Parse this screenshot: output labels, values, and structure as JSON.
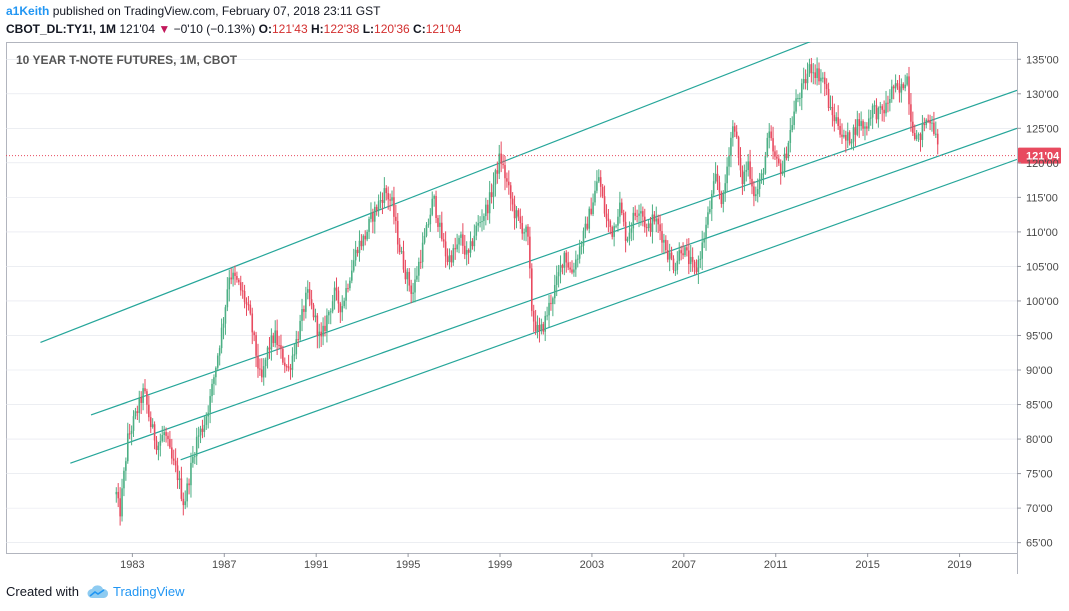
{
  "header": {
    "author": "a1Keith",
    "published_text": "published on TradingView.com, February 07, 2018 23:11 GST",
    "symbol": "CBOT_DL:TY1!, 1M",
    "last": "121'04",
    "change_arrow": "▼",
    "change": "−0'10 (−0.13%)",
    "open_label": "O:",
    "open": "121'43",
    "high_label": "H:",
    "high": "122'38",
    "low_label": "L:",
    "low": "120'36",
    "close_label": "C:",
    "close": "121'04"
  },
  "footer": {
    "created_with": "Created with",
    "brand": "TradingView",
    "logo_icon": "tradingview-cloud-icon"
  },
  "colors": {
    "up": "#4caf84",
    "down": "#e84a5f",
    "channel": "#26a69a",
    "price_line": "#e84a5f",
    "price_tag": "#e84a5f",
    "axis_text": "#4a4a4a",
    "grid": "#e0e3eb"
  },
  "chart_data": {
    "type": "candlestick",
    "title": "10 YEAR T-NOTE FUTURES, 1M, CBOT",
    "interval": "1M",
    "xlabel": "",
    "ylabel": "",
    "xlim": [
      1977.5,
      2021.5
    ],
    "ylim": [
      63.5,
      137.5
    ],
    "x_ticks": [
      1983,
      1987,
      1991,
      1995,
      1999,
      2003,
      2007,
      2011,
      2015,
      2019
    ],
    "x_tick_labels": [
      "1983",
      "1987",
      "1991",
      "1995",
      "1999",
      "2003",
      "2007",
      "2011",
      "2015",
      "2019"
    ],
    "y_ticks": [
      65,
      70,
      75,
      80,
      85,
      90,
      95,
      100,
      105,
      110,
      115,
      120,
      125,
      130,
      135
    ],
    "y_tick_labels": [
      "65'00",
      "70'00",
      "75'00",
      "80'00",
      "85'00",
      "90'00",
      "95'00",
      "100'00",
      "105'00",
      "110'00",
      "115'00",
      "120'00",
      "125'00",
      "130'00",
      "135'00"
    ],
    "last_price": 121.04,
    "last_price_label": "121'04",
    "price_path": [
      [
        1982.3,
        72
      ],
      [
        1982.45,
        69
      ],
      [
        1982.8,
        80
      ],
      [
        1983.2,
        84
      ],
      [
        1983.5,
        87
      ],
      [
        1983.8,
        82
      ],
      [
        1984.1,
        79
      ],
      [
        1984.4,
        81
      ],
      [
        1984.7,
        77
      ],
      [
        1984.95,
        75
      ],
      [
        1985.25,
        70.5
      ],
      [
        1985.5,
        75
      ],
      [
        1985.8,
        80
      ],
      [
        1986.1,
        82
      ],
      [
        1986.4,
        86
      ],
      [
        1986.7,
        92
      ],
      [
        1987.0,
        98
      ],
      [
        1987.2,
        104
      ],
      [
        1987.5,
        103
      ],
      [
        1987.8,
        101
      ],
      [
        1988.1,
        98
      ],
      [
        1988.3,
        94
      ],
      [
        1988.6,
        88
      ],
      [
        1988.9,
        93
      ],
      [
        1989.2,
        95
      ],
      [
        1989.5,
        92
      ],
      [
        1989.8,
        90
      ],
      [
        1990.2,
        95
      ],
      [
        1990.6,
        101
      ],
      [
        1990.9,
        98
      ],
      [
        1991.2,
        94
      ],
      [
        1991.5,
        98
      ],
      [
        1991.8,
        101
      ],
      [
        1992.1,
        99
      ],
      [
        1992.4,
        103
      ],
      [
        1992.8,
        108
      ],
      [
        1993.1,
        109
      ],
      [
        1993.4,
        112
      ],
      [
        1993.7,
        114
      ],
      [
        1994.0,
        116
      ],
      [
        1994.3,
        114
      ],
      [
        1994.6,
        108
      ],
      [
        1994.9,
        104
      ],
      [
        1995.2,
        101
      ],
      [
        1995.5,
        106
      ],
      [
        1995.8,
        110
      ],
      [
        1996.1,
        115
      ],
      [
        1996.4,
        110
      ],
      [
        1996.7,
        106
      ],
      [
        1997.0,
        107
      ],
      [
        1997.3,
        109
      ],
      [
        1997.6,
        106
      ],
      [
        1997.9,
        110
      ],
      [
        1998.2,
        112
      ],
      [
        1998.5,
        114
      ],
      [
        1998.8,
        118
      ],
      [
        1999.0,
        121
      ],
      [
        1999.3,
        117
      ],
      [
        1999.6,
        113
      ],
      [
        1999.9,
        111
      ],
      [
        2000.2,
        109.5
      ],
      [
        2000.4,
        98
      ],
      [
        2000.7,
        95
      ],
      [
        2000.95,
        97
      ],
      [
        2001.2,
        100
      ],
      [
        2001.5,
        103
      ],
      [
        2001.8,
        107
      ],
      [
        2002.1,
        104
      ],
      [
        2002.4,
        107
      ],
      [
        2002.7,
        110
      ],
      [
        2003.0,
        114
      ],
      [
        2003.3,
        118
      ],
      [
        2003.6,
        112
      ],
      [
        2003.9,
        110
      ],
      [
        2004.2,
        114
      ],
      [
        2004.5,
        109
      ],
      [
        2004.8,
        112
      ],
      [
        2005.1,
        114
      ],
      [
        2005.4,
        110
      ],
      [
        2005.7,
        112
      ],
      [
        2006.0,
        110
      ],
      [
        2006.3,
        107
      ],
      [
        2006.6,
        105
      ],
      [
        2006.9,
        108
      ],
      [
        2007.2,
        106
      ],
      [
        2007.5,
        104
      ],
      [
        2007.8,
        108
      ],
      [
        2008.1,
        113
      ],
      [
        2008.4,
        118
      ],
      [
        2008.7,
        114
      ],
      [
        2009.0,
        123
      ],
      [
        2009.2,
        126
      ],
      [
        2009.5,
        117
      ],
      [
        2009.8,
        120
      ],
      [
        2010.1,
        115
      ],
      [
        2010.4,
        118
      ],
      [
        2010.7,
        124
      ],
      [
        2011.0,
        120
      ],
      [
        2011.3,
        119
      ],
      [
        2011.6,
        124
      ],
      [
        2011.9,
        129
      ],
      [
        2012.2,
        131
      ],
      [
        2012.5,
        134
      ],
      [
        2012.8,
        133
      ],
      [
        2013.1,
        132
      ],
      [
        2013.4,
        127
      ],
      [
        2013.7,
        126
      ],
      [
        2014.0,
        123
      ],
      [
        2014.3,
        124
      ],
      [
        2014.6,
        126
      ],
      [
        2014.9,
        125
      ],
      [
        2015.2,
        128
      ],
      [
        2015.5,
        127
      ],
      [
        2015.8,
        128
      ],
      [
        2016.1,
        131
      ],
      [
        2016.4,
        130
      ],
      [
        2016.7,
        133
      ],
      [
        2016.9,
        126
      ],
      [
        2017.2,
        123
      ],
      [
        2017.5,
        126
      ],
      [
        2017.8,
        126.5
      ],
      [
        2018.1,
        121.04
      ]
    ],
    "channel_lines": [
      {
        "x1": 1979.0,
        "y1": 94.0,
        "x2": 2014.0,
        "y2": 139.5
      },
      {
        "x1": 1981.2,
        "y1": 83.5,
        "x2": 2021.5,
        "y2": 130.5
      },
      {
        "x1": 1980.3,
        "y1": 76.5,
        "x2": 2021.5,
        "y2": 125.0
      },
      {
        "x1": 1985.1,
        "y1": 77.0,
        "x2": 2021.5,
        "y2": 120.5
      }
    ]
  }
}
